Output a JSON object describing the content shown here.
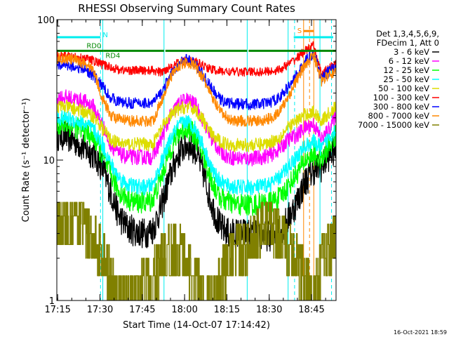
{
  "chart_data": {
    "type": "line",
    "title": "RHESSI Observing Summary Count Rates",
    "xlabel": "Start Time (14-Oct-07 17:14:42)",
    "ylabel": "Count Rate (s⁻¹ detector⁻¹)",
    "y_scale": "log",
    "x_unit": "minutes since 17:14:42",
    "xlim": [
      0,
      99
    ],
    "ylim": [
      1,
      100
    ],
    "x_ticks": [
      {
        "label": "17:15",
        "x": 0.3
      },
      {
        "label": "17:30",
        "x": 15.3
      },
      {
        "label": "17:45",
        "x": 30.3
      },
      {
        "label": "18:00",
        "x": 45.3
      },
      {
        "label": "18:15",
        "x": 60.3
      },
      {
        "label": "18:30",
        "x": 75.3
      },
      {
        "label": "18:45",
        "x": 90.3
      }
    ],
    "y_ticks": [
      {
        "label": "1",
        "y": 1
      },
      {
        "label": "10",
        "y": 10
      },
      {
        "label": "100",
        "y": 100
      }
    ],
    "legend": {
      "placement": "right",
      "header": [
        "Det 1,3,4,5,6,9,",
        "FDecim 1, Att 0"
      ]
    },
    "series": [
      {
        "name": "3 - 6 keV",
        "color": "#000000",
        "noise": 0.07,
        "x": [
          0,
          3,
          7,
          10,
          13,
          16,
          19,
          22,
          25,
          28,
          31,
          34,
          37,
          40,
          43,
          46,
          49,
          52,
          55,
          58,
          61,
          64,
          67,
          70,
          73,
          76,
          79,
          82,
          85,
          88,
          91,
          94,
          96,
          99
        ],
        "y": [
          15,
          15,
          13.5,
          12,
          11,
          9,
          6,
          4,
          3.3,
          3.1,
          3,
          3.2,
          4.6,
          7.5,
          11,
          13,
          12,
          8,
          4.8,
          3.3,
          3,
          3,
          3,
          3,
          2.9,
          2.9,
          3.1,
          3.8,
          5,
          7,
          8.5,
          9,
          10.5,
          12
        ]
      },
      {
        "name": "6 - 12 keV",
        "color": "#ff00ff",
        "noise": 0.035,
        "x": [
          0,
          3,
          7,
          10,
          13,
          16,
          19,
          22,
          25,
          28,
          31,
          34,
          37,
          40,
          43,
          46,
          49,
          52,
          55,
          58,
          61,
          64,
          67,
          70,
          73,
          76,
          79,
          82,
          85,
          88,
          91,
          94,
          96,
          99
        ],
        "y": [
          28,
          28,
          27,
          26,
          24,
          18,
          13,
          11,
          10.5,
          10.5,
          10.5,
          10.5,
          14,
          20,
          25,
          27,
          25,
          19,
          14,
          11.5,
          10.5,
          10.3,
          10.3,
          10.3,
          10.5,
          11,
          12,
          14,
          15,
          17,
          18,
          14,
          16,
          21
        ]
      },
      {
        "name": "12 - 25 keV",
        "color": "#00ff00",
        "noise": 0.05,
        "x": [
          0,
          3,
          7,
          10,
          13,
          16,
          19,
          22,
          25,
          28,
          31,
          34,
          37,
          40,
          43,
          46,
          49,
          52,
          55,
          58,
          61,
          64,
          67,
          70,
          73,
          76,
          79,
          82,
          85,
          88,
          91,
          94,
          96,
          99
        ],
        "y": [
          18,
          18,
          17,
          16,
          14.5,
          11,
          8,
          6,
          5.3,
          5,
          5,
          5.2,
          7.5,
          11.5,
          15.5,
          17,
          15,
          10.5,
          7,
          5.4,
          5,
          4.8,
          4.8,
          4.8,
          4.9,
          5,
          5.4,
          6.5,
          8,
          10,
          11,
          10,
          12,
          15
        ]
      },
      {
        "name": "25 - 50 keV",
        "color": "#00ffff",
        "noise": 0.035,
        "x": [
          0,
          3,
          7,
          10,
          13,
          16,
          19,
          22,
          25,
          28,
          31,
          34,
          37,
          40,
          43,
          46,
          49,
          52,
          55,
          58,
          61,
          64,
          67,
          70,
          73,
          76,
          79,
          82,
          85,
          88,
          91,
          94,
          96,
          99
        ],
        "y": [
          20,
          20,
          19,
          18,
          16.5,
          13,
          9.5,
          7.5,
          6.7,
          6.5,
          6.4,
          6.6,
          9.5,
          13.5,
          17.5,
          19,
          17,
          12.5,
          8.5,
          7,
          6.5,
          6.4,
          6.4,
          6.4,
          6.5,
          6.8,
          7.5,
          9,
          10.5,
          12.5,
          13.5,
          12,
          14,
          17
        ]
      },
      {
        "name": "50 - 100 keV",
        "color": "#dddd00",
        "noise": 0.03,
        "x": [
          0,
          3,
          7,
          10,
          13,
          16,
          19,
          22,
          25,
          28,
          31,
          34,
          37,
          40,
          43,
          46,
          49,
          52,
          55,
          58,
          61,
          64,
          67,
          70,
          73,
          76,
          79,
          82,
          85,
          88,
          91,
          94,
          96,
          99
        ],
        "y": [
          24,
          24,
          23,
          22,
          20.5,
          17,
          14,
          13.2,
          13,
          13,
          13,
          13,
          16.5,
          20.5,
          23,
          24,
          23,
          19,
          15,
          13.5,
          13,
          12.8,
          12.8,
          12.8,
          13,
          13.5,
          14.5,
          17,
          19,
          21,
          22,
          19,
          21,
          24
        ]
      },
      {
        "name": "100 - 300 keV",
        "color": "#ff0000",
        "noise": 0.02,
        "x": [
          0,
          3,
          7,
          10,
          13,
          16,
          19,
          22,
          25,
          28,
          31,
          34,
          37,
          40,
          43,
          46,
          49,
          52,
          55,
          58,
          61,
          64,
          67,
          70,
          73,
          76,
          79,
          82,
          85,
          88,
          91,
          94,
          96,
          99
        ],
        "y": [
          55,
          55,
          54,
          53,
          51,
          48,
          46,
          44,
          43.5,
          43.5,
          43.5,
          43.5,
          42,
          46,
          49,
          51,
          50,
          47,
          44,
          43,
          42.5,
          42.5,
          42.5,
          42.5,
          42.5,
          43,
          44,
          48,
          53,
          60,
          65,
          40,
          45,
          48
        ]
      },
      {
        "name": "300 - 800 keV",
        "color": "#0000ff",
        "noise": 0.025,
        "x": [
          0,
          3,
          7,
          10,
          13,
          16,
          19,
          22,
          25,
          28,
          31,
          34,
          37,
          40,
          43,
          46,
          49,
          52,
          55,
          58,
          61,
          64,
          67,
          70,
          73,
          76,
          79,
          82,
          85,
          88,
          91,
          94,
          96,
          99
        ],
        "y": [
          48,
          48,
          46,
          44,
          40,
          34,
          28,
          26,
          25.5,
          25.5,
          25.5,
          25.5,
          30,
          39,
          48,
          52,
          49,
          40,
          32,
          27,
          25.5,
          25,
          25,
          25,
          25,
          26,
          28,
          33,
          40,
          50,
          58,
          38,
          42,
          46
        ]
      },
      {
        "name": "800 - 7000 keV",
        "color": "#ff8800",
        "noise": 0.025,
        "x": [
          0,
          3,
          7,
          10,
          13,
          16,
          19,
          22,
          25,
          28,
          31,
          34,
          37,
          40,
          43,
          46,
          49,
          52,
          55,
          58,
          61,
          64,
          67,
          70,
          73,
          76,
          79,
          82,
          85,
          88,
          91,
          94,
          96,
          99
        ],
        "y": [
          53,
          53,
          51,
          49,
          44,
          28,
          21,
          19.5,
          19,
          19,
          19,
          19,
          26,
          38,
          47,
          50,
          47,
          38,
          28,
          22,
          19.5,
          19,
          19,
          19,
          19,
          20,
          22,
          28,
          37,
          48,
          56,
          36,
          40,
          43
        ]
      },
      {
        "name": "7000 - 15000 keV",
        "color": "#808000",
        "noise": 0.0,
        "x": [
          0,
          3,
          6,
          9,
          12,
          15,
          17,
          19,
          22,
          25,
          28,
          31,
          34,
          37,
          40,
          43,
          46,
          49,
          52,
          55,
          58,
          61,
          64,
          67,
          70,
          73,
          76,
          79,
          82,
          85,
          88,
          91,
          94,
          97,
          99
        ],
        "y": [
          4,
          4,
          4,
          3.5,
          3,
          2.5,
          2,
          1.5,
          1,
          1,
          1,
          1.5,
          1.5,
          2,
          2.5,
          2.5,
          2,
          1.5,
          1,
          1,
          1.5,
          2,
          2.5,
          2.5,
          3,
          3.5,
          3.5,
          3,
          2.5,
          2,
          1.5,
          1,
          2,
          2.5,
          3
        ]
      }
    ],
    "orbit_bars": [
      {
        "label": "RD0",
        "color": "#008800",
        "y": 60,
        "segments": [
          [
            0,
            16.5
          ]
        ]
      },
      {
        "label": "RD4",
        "color": "#008800",
        "y": 60,
        "segments": [
          [
            16.5,
            38
          ],
          [
            38.5,
            67.5
          ],
          [
            68,
            99
          ]
        ]
      },
      {
        "label": "N",
        "color": "#00eeee",
        "y": 75,
        "segments": [
          [
            0,
            15.5
          ]
        ]
      },
      {
        "label": "",
        "color": "#00eeee",
        "y": 75,
        "segments": [
          [
            84,
            98
          ]
        ]
      },
      {
        "label": "S",
        "color": "#ff8800",
        "y": 83,
        "segments": [
          [
            87.5,
            91
          ]
        ]
      }
    ],
    "vertical_markers": [
      {
        "x": 15.5,
        "color": "#00eeee",
        "style": "dash"
      },
      {
        "x": 16.3,
        "color": "#00eeee",
        "style": "solid"
      },
      {
        "x": 38,
        "color": "#00eeee",
        "style": "solid"
      },
      {
        "x": 67.5,
        "color": "#00eeee",
        "style": "solid"
      },
      {
        "x": 82,
        "color": "#00eeee",
        "style": "solid"
      },
      {
        "x": 84.3,
        "color": "#00eeee",
        "style": "dash"
      },
      {
        "x": 87.5,
        "color": "#ff8800",
        "style": "solid"
      },
      {
        "x": 89.6,
        "color": "#ff8800",
        "style": "dash"
      },
      {
        "x": 91.1,
        "color": "#ff8800",
        "style": "solid"
      },
      {
        "x": 93.3,
        "color": "#00eeee",
        "style": "solid"
      },
      {
        "x": 97.4,
        "color": "#00eeee",
        "style": "dash"
      }
    ]
  },
  "footer": {
    "timestamp": "16-Oct-2021 18:59"
  }
}
